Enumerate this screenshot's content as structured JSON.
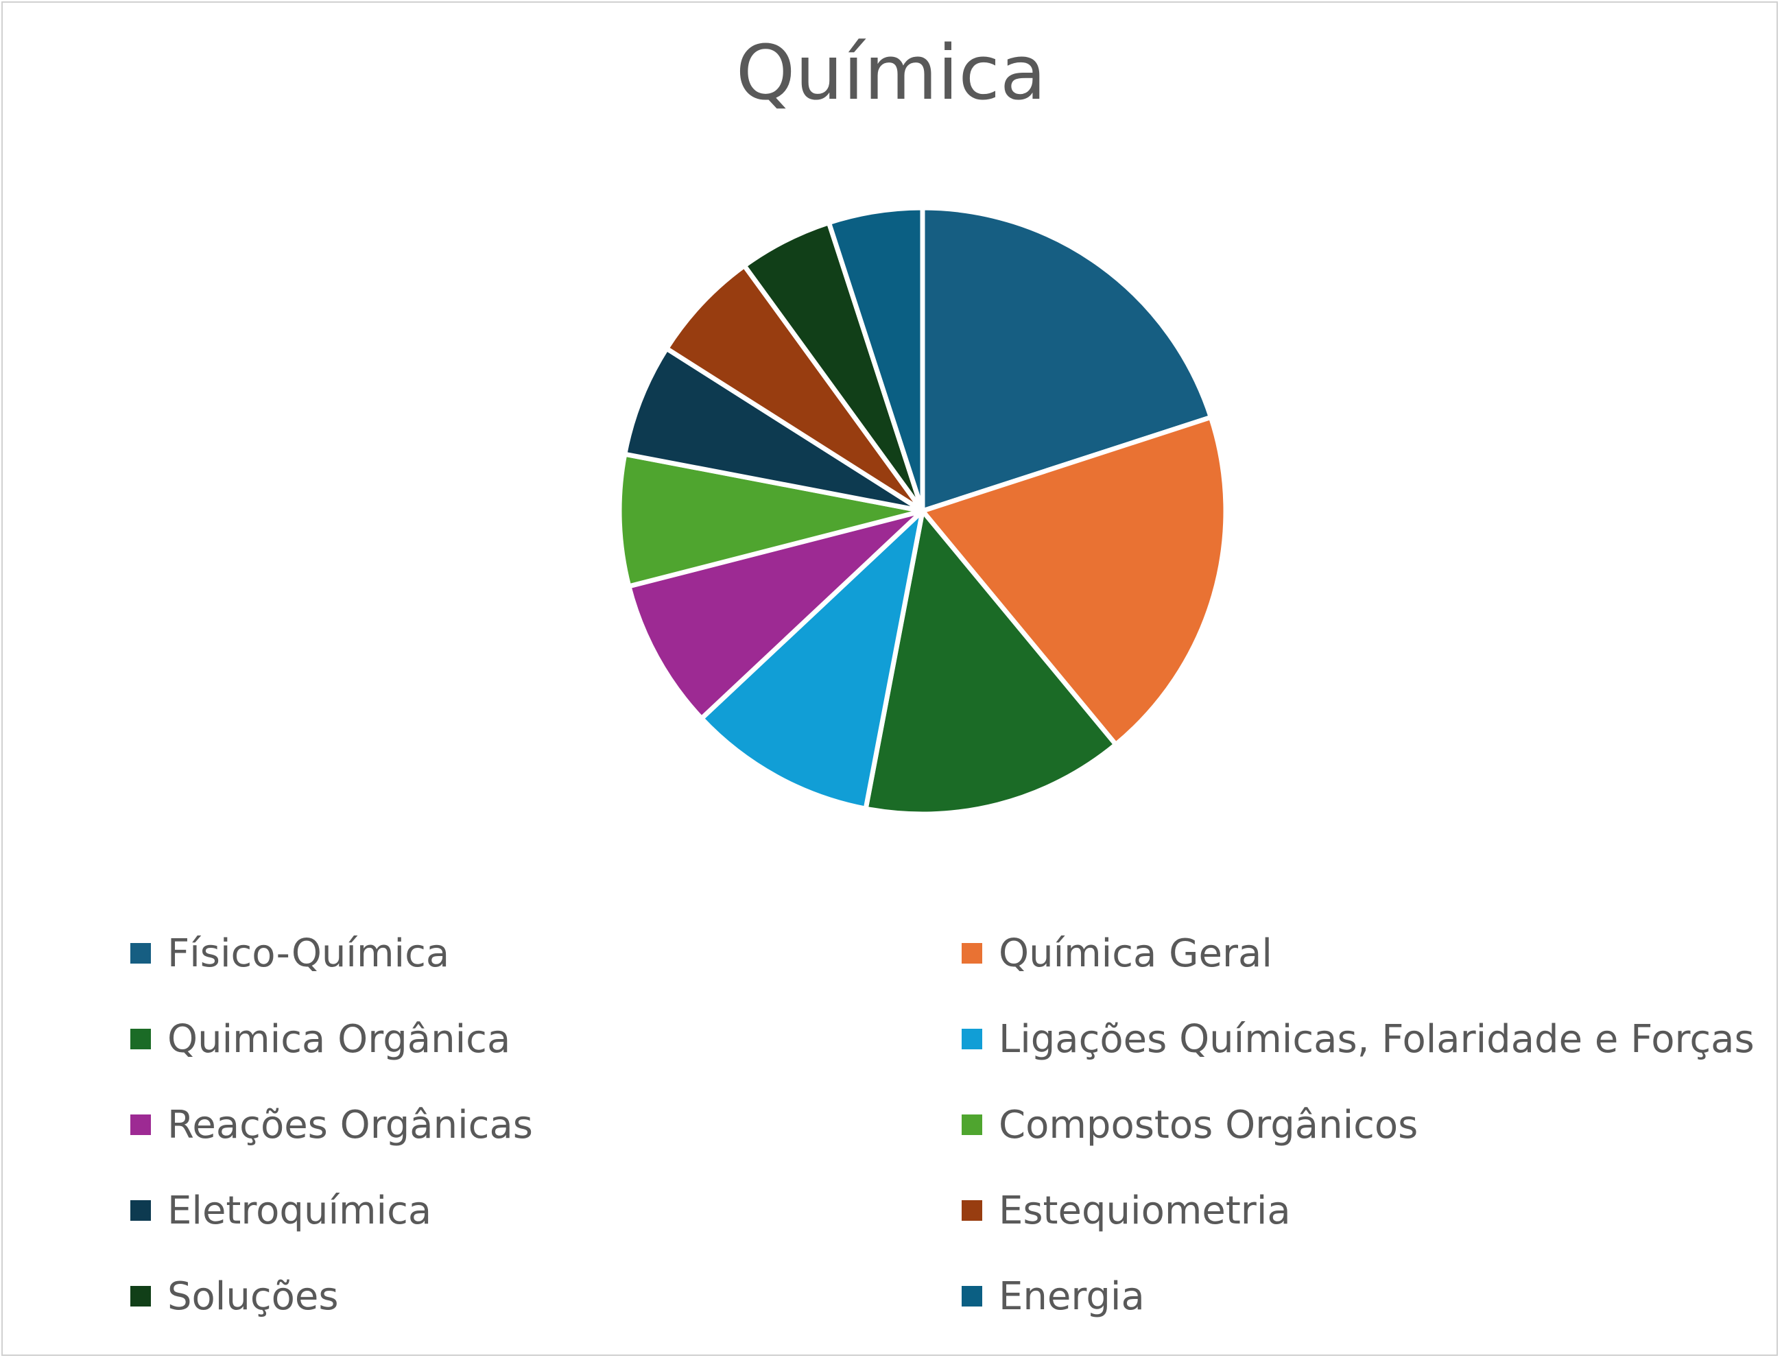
{
  "chart_data": {
    "type": "pie",
    "title": "Química",
    "legend_position": "bottom",
    "categories": [
      "Físico-Química",
      "Química Geral",
      "Quimica Orgânica",
      "Ligações Químicas, Folaridade e Forças",
      "Reações Orgânicas",
      "Compostos Orgânicos",
      "Eletroquímica",
      "Estequiometria",
      "Soluções",
      "Energia"
    ],
    "values": [
      20,
      19,
      14,
      10,
      8,
      7,
      6,
      6,
      5,
      5
    ],
    "colors": [
      "#165e82",
      "#e97233",
      "#1b6b26",
      "#119ed6",
      "#9d2a93",
      "#4fa52f",
      "#0d3a50",
      "#983d10",
      "#113f18",
      "#0b5f83"
    ]
  }
}
